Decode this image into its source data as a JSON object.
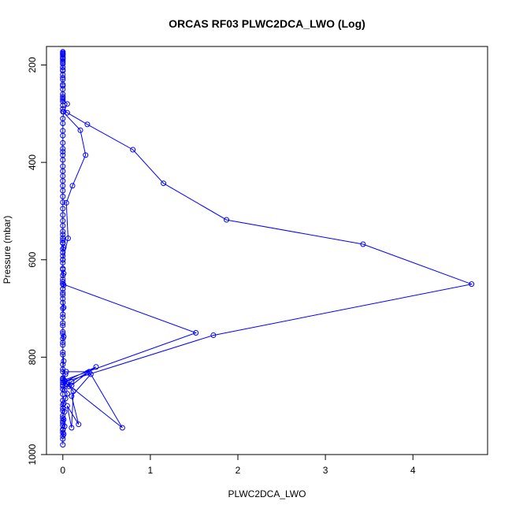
{
  "chart_data": {
    "type": "scatter",
    "title": "ORCAS RF03 PLWC2DCA_LWO (Log)",
    "xlabel": "PLWC2DCA_LWO",
    "ylabel": "Pressure (mbar)",
    "xlim": [
      -0.187,
      4.853
    ],
    "ylim": [
      1000,
      162
    ],
    "y_reversed": true,
    "grid": false,
    "legend": "none",
    "x_ticks": [
      0,
      1,
      2,
      3,
      4
    ],
    "y_ticks": [
      200,
      400,
      600,
      800,
      1000
    ],
    "colors": {
      "series": "#0000ff",
      "axis": "#000000"
    },
    "series": [
      {
        "marker": "open-circle",
        "connected": true,
        "points": [
          [
            0.0,
            980
          ],
          [
            0.0,
            968
          ],
          [
            0.01,
            958
          ],
          [
            0.0,
            950
          ],
          [
            0.02,
            942
          ],
          [
            0.0,
            935
          ],
          [
            0.01,
            928
          ],
          [
            0.0,
            920
          ],
          [
            0.02,
            912
          ],
          [
            0.0,
            905
          ],
          [
            0.01,
            895
          ],
          [
            0.03,
            885
          ],
          [
            0.05,
            875
          ],
          [
            0.02,
            868
          ],
          [
            0.0,
            860
          ],
          [
            0.04,
            855
          ],
          [
            0.1,
            858
          ],
          [
            0.28,
            832
          ],
          [
            0.38,
            820
          ],
          [
            0.02,
            850
          ],
          [
            0.07,
            860
          ],
          [
            0.12,
            870
          ],
          [
            0.1,
            945
          ],
          [
            0.05,
            900
          ],
          [
            0.18,
            938
          ],
          [
            0.1,
            880
          ],
          [
            0.32,
            835
          ],
          [
            0.68,
            945
          ],
          [
            0.0,
            848
          ],
          [
            1.52,
            750
          ],
          [
            0.0,
            650
          ],
          [
            0.0,
            640
          ],
          [
            0.01,
            628
          ],
          [
            0.0,
            618
          ],
          [
            0.0,
            600
          ],
          [
            0.0,
            585
          ],
          [
            0.01,
            575
          ],
          [
            0.0,
            566
          ],
          [
            0.0,
            555
          ],
          [
            0.0,
            548
          ],
          [
            0.0,
            565
          ],
          [
            0.0,
            650
          ],
          [
            0.0,
            660
          ],
          [
            0.0,
            668
          ],
          [
            0.0,
            680
          ],
          [
            0.01,
            698
          ],
          [
            0.0,
            712
          ],
          [
            0.0,
            730
          ],
          [
            0.0,
            748
          ],
          [
            0.01,
            758
          ],
          [
            0.0,
            770
          ],
          [
            0.0,
            790
          ],
          [
            0.01,
            808
          ],
          [
            0.0,
            825
          ],
          [
            0.03,
            835
          ],
          [
            0.0,
            845
          ],
          [
            0.0,
            852
          ],
          [
            1.72,
            755
          ],
          [
            4.67,
            650
          ],
          [
            3.43,
            568
          ],
          [
            1.87,
            518
          ],
          [
            1.15,
            443
          ],
          [
            0.8,
            374
          ],
          [
            0.28,
            322
          ],
          [
            0.05,
            298
          ],
          [
            0.0,
            290
          ],
          [
            0.0,
            283
          ],
          [
            0.0,
            275
          ],
          [
            0.0,
            268
          ],
          [
            0.0,
            260
          ],
          [
            0.0,
            250
          ],
          [
            0.0,
            240
          ],
          [
            0.0,
            230
          ],
          [
            0.0,
            220
          ],
          [
            0.0,
            212
          ],
          [
            0.0,
            205
          ],
          [
            0.0,
            198
          ],
          [
            0.0,
            192
          ],
          [
            0.0,
            188
          ],
          [
            0.0,
            184
          ],
          [
            0.0,
            180
          ],
          [
            0.0,
            177
          ],
          [
            0.0,
            175
          ],
          [
            0.0,
            173
          ],
          [
            0.0,
            178
          ],
          [
            0.0,
            186
          ],
          [
            0.0,
            195
          ],
          [
            0.0,
            210
          ],
          [
            0.0,
            226
          ],
          [
            0.0,
            243
          ],
          [
            0.0,
            265
          ],
          [
            0.0,
            271
          ],
          [
            0.05,
            280
          ],
          [
            0.01,
            296
          ],
          [
            0.0,
            310
          ],
          [
            0.0,
            320
          ],
          [
            0.0,
            335
          ],
          [
            0.0,
            345
          ],
          [
            0.0,
            360
          ],
          [
            0.0,
            372
          ],
          [
            0.0,
            378
          ],
          [
            0.0,
            385
          ],
          [
            0.0,
            395
          ],
          [
            0.0,
            408
          ],
          [
            0.0,
            418
          ],
          [
            0.0,
            428
          ],
          [
            0.0,
            438
          ],
          [
            0.0,
            448
          ],
          [
            0.0,
            458
          ],
          [
            0.0,
            470
          ],
          [
            0.0,
            482
          ],
          [
            0.0,
            495
          ],
          [
            0.0,
            508
          ],
          [
            0.0,
            520
          ],
          [
            0.0,
            530
          ],
          [
            0.0,
            542
          ],
          [
            0.0,
            560
          ],
          [
            0.0,
            578
          ],
          [
            0.0,
            592
          ],
          [
            0.0,
            606
          ],
          [
            0.0,
            620
          ],
          [
            0.0,
            632
          ],
          [
            0.0,
            645
          ],
          [
            0.01,
            652
          ],
          [
            0.0,
            660
          ],
          [
            0.0,
            672
          ],
          [
            0.0,
            688
          ],
          [
            0.0,
            700
          ],
          [
            0.0,
            718
          ],
          [
            0.0,
            735
          ],
          [
            0.0,
            752
          ],
          [
            0.0,
            762
          ],
          [
            0.0,
            775
          ],
          [
            0.0,
            795
          ],
          [
            0.0,
            815
          ],
          [
            0.0,
            830
          ],
          [
            0.0,
            843
          ],
          [
            0.02,
            848
          ],
          [
            0.0,
            857
          ],
          [
            0.0,
            866
          ],
          [
            0.0,
            876
          ],
          [
            0.0,
            889
          ],
          [
            0.0,
            898
          ],
          [
            0.0,
            910
          ],
          [
            0.0,
            925
          ],
          [
            0.0,
            931
          ],
          [
            0.0,
            940
          ],
          [
            0.0,
            948
          ],
          [
            0.0,
            955
          ],
          [
            0.0,
            962
          ]
        ]
      },
      {
        "marker": "open-circle",
        "connected": true,
        "points": [
          [
            0.0,
            296
          ],
          [
            0.2,
            334
          ],
          [
            0.26,
            385
          ],
          [
            0.11,
            448
          ],
          [
            0.04,
            483
          ],
          [
            0.06,
            556
          ],
          [
            0.0,
            600
          ]
        ]
      },
      {
        "marker": "open-circle",
        "connected": true,
        "points": [
          [
            0.04,
            830
          ],
          [
            0.3,
            830
          ],
          [
            0.1,
            850
          ],
          [
            0.05,
            856
          ]
        ]
      }
    ]
  }
}
